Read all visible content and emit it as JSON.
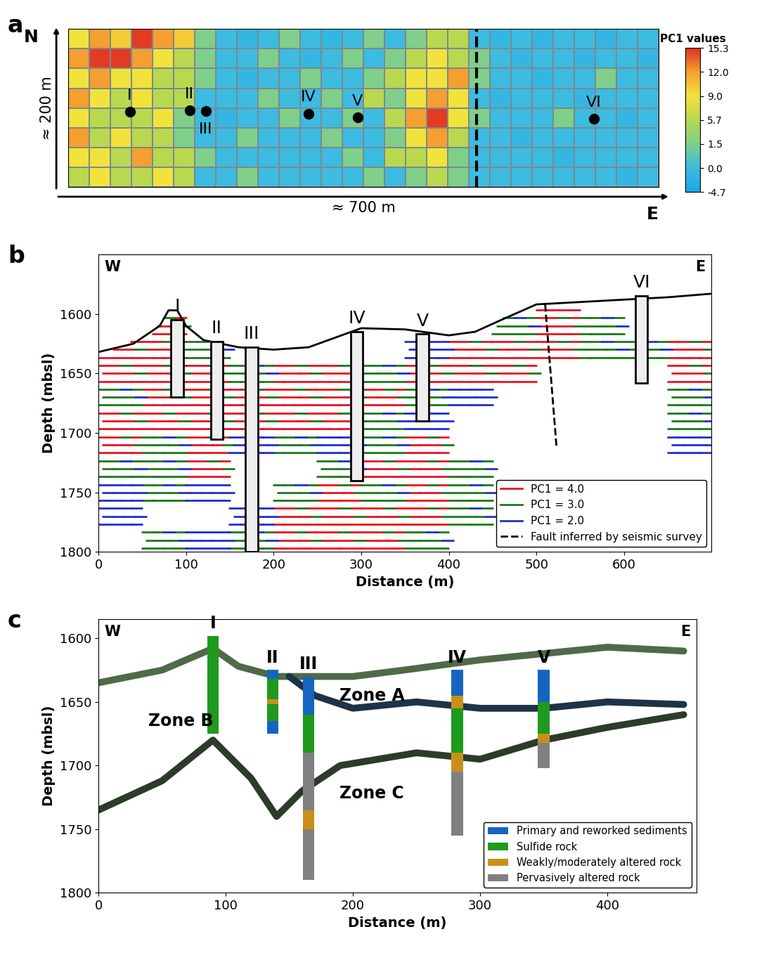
{
  "chart_data": [
    {
      "type": "heatmap",
      "panel": "a",
      "xlabel": "≈ 700 m",
      "ylabel": "≈ 200 m",
      "north": "N",
      "east": "E",
      "xlim": [
        0,
        700
      ],
      "ylim": [
        0,
        200
      ],
      "tick_labels": false,
      "cells": [
        [
          9,
          12,
          10,
          15,
          12,
          10,
          1.5,
          0,
          -1,
          0,
          1.5,
          0,
          -1,
          0,
          1.5,
          0,
          1.5,
          5.7,
          5.7,
          0,
          -1,
          0,
          -1,
          0,
          0,
          -1,
          0,
          0
        ],
        [
          12,
          15,
          15,
          12,
          9,
          5.7,
          1.5,
          0,
          0,
          1.5,
          0,
          -1,
          0,
          1.5,
          0,
          1.5,
          5.7,
          9,
          5.7,
          1.5,
          0,
          -1,
          0,
          0,
          -1,
          0,
          0,
          -1
        ],
        [
          9,
          12,
          9,
          9,
          5.7,
          5.7,
          1.5,
          0,
          -1,
          0,
          0,
          1.5,
          0,
          0,
          1.5,
          5.7,
          9,
          9,
          12,
          1.5,
          0,
          0,
          -1,
          0,
          0,
          1.5,
          0,
          0
        ],
        [
          12,
          9,
          5.7,
          9,
          5.7,
          5.7,
          0,
          0,
          0,
          1.5,
          0,
          0,
          1.5,
          0,
          5.7,
          1.5,
          9,
          12,
          9,
          0,
          -1,
          0,
          0,
          0,
          -1,
          0,
          0,
          0
        ],
        [
          9,
          5.7,
          5.7,
          5.7,
          9,
          1.5,
          0,
          -1,
          0,
          0,
          1.5,
          0,
          0,
          1.5,
          0,
          5.7,
          12,
          15,
          9,
          1.5,
          0,
          0,
          0,
          1.5,
          0,
          0,
          -1,
          0
        ],
        [
          12,
          5.7,
          9,
          5.7,
          5.7,
          1.5,
          0,
          0,
          1.5,
          0,
          0,
          0,
          1.5,
          0,
          0,
          1.5,
          9,
          12,
          5.7,
          0,
          0,
          -1,
          0,
          0,
          0,
          0,
          0,
          0
        ],
        [
          9,
          9,
          5.7,
          12,
          5.7,
          5.7,
          1.5,
          0,
          0,
          0,
          0,
          0,
          0,
          1.5,
          0,
          5.7,
          5.7,
          9,
          1.5,
          0,
          0,
          0,
          0,
          -1,
          0,
          0,
          0,
          0
        ],
        [
          5.7,
          9,
          5.7,
          5.7,
          9,
          5.7,
          0,
          0,
          1.5,
          0,
          0,
          0,
          0,
          0,
          1.5,
          0,
          1.5,
          5.7,
          1.5,
          0,
          0,
          0,
          0,
          0,
          0,
          0,
          -1,
          0
        ]
      ],
      "colorbar": {
        "label": "PC1 values",
        "range": [
          -4.7,
          15.3
        ],
        "ticks": [
          -4.7,
          0.0,
          1.5,
          5.7,
          9.0,
          12.0,
          15.3
        ]
      },
      "sites": [
        {
          "name": "I",
          "x": 73,
          "y": 95
        },
        {
          "name": "II",
          "x": 144,
          "y": 97
        },
        {
          "name": "III",
          "x": 163,
          "y": 96
        },
        {
          "name": "IV",
          "x": 285,
          "y": 93
        },
        {
          "name": "V",
          "x": 343,
          "y": 88
        },
        {
          "name": "VI",
          "x": 623,
          "y": 86
        }
      ],
      "fault_x": 484
    },
    {
      "type": "section",
      "panel": "b",
      "left": "W",
      "right": "E",
      "xlabel": "Distance (m)",
      "ylabel": "Depth (mbsl)",
      "xlim": [
        0,
        700
      ],
      "ylim": [
        1800,
        1550
      ],
      "xticks": [
        0,
        100,
        200,
        300,
        400,
        500,
        600
      ],
      "yticks": [
        1600,
        1650,
        1700,
        1750,
        1800
      ],
      "seafloor": {
        "x": [
          0,
          40,
          70,
          80,
          90,
          100,
          120,
          160,
          200,
          240,
          270,
          300,
          350,
          400,
          430,
          460,
          500,
          550,
          600,
          650,
          700
        ],
        "depth": [
          1632,
          1625,
          1610,
          1597,
          1597,
          1610,
          1622,
          1628,
          1630,
          1628,
          1620,
          1612,
          1613,
          1618,
          1615,
          1605,
          1592,
          1590,
          1588,
          1586,
          1583
        ]
      },
      "boreholes": [
        {
          "name": "I",
          "x": 90,
          "top": 1605,
          "bottom": 1670
        },
        {
          "name": "II",
          "x": 135,
          "top": 1623,
          "bottom": 1705
        },
        {
          "name": "III",
          "x": 175,
          "top": 1628,
          "bottom": 1800
        },
        {
          "name": "IV",
          "x": 295,
          "top": 1615,
          "bottom": 1740
        },
        {
          "name": "V",
          "x": 370,
          "top": 1617,
          "bottom": 1690
        },
        {
          "name": "VI",
          "x": 620,
          "top": 1585,
          "bottom": 1658
        }
      ],
      "levels": [
        {
          "name": "PC1 = 4.0",
          "value": 4.0,
          "color": "#e8141e"
        },
        {
          "name": "PC1 = 3.0",
          "value": 3.0,
          "color": "#1a7a1a"
        },
        {
          "name": "PC1 = 2.0",
          "value": 2.0,
          "color": "#1f2fd0"
        }
      ],
      "pc1_grid": {
        "x": [
          25,
          75,
          125,
          175,
          225,
          275,
          325,
          375,
          425,
          475,
          525,
          575,
          625,
          675
        ],
        "depth": [
          1590,
          1610,
          1630,
          1650,
          1670,
          1690,
          1710,
          1730,
          1750,
          1770,
          1790
        ],
        "values": [
          [
            0,
            0,
            0,
            0,
            0,
            0,
            0,
            0,
            0,
            0,
            4,
            0,
            0,
            0
          ],
          [
            0,
            4,
            0,
            0,
            0,
            0,
            0,
            0,
            0,
            3,
            4,
            3,
            0,
            0
          ],
          [
            4,
            4,
            3,
            0,
            0,
            0,
            0,
            2,
            4,
            4,
            4,
            3,
            3,
            4
          ],
          [
            4,
            4,
            4,
            3,
            4,
            4,
            3,
            4,
            4,
            4,
            0,
            0,
            0,
            4
          ],
          [
            3,
            4,
            4,
            4,
            4,
            4,
            4,
            3,
            2,
            0,
            0,
            0,
            0,
            3
          ],
          [
            4,
            4,
            4,
            4,
            4,
            4,
            3,
            2,
            0,
            0,
            0,
            0,
            0,
            3
          ],
          [
            4,
            3,
            4,
            2,
            3,
            2,
            3,
            4,
            0,
            0,
            0,
            0,
            0,
            2
          ],
          [
            3,
            3,
            4,
            0,
            0,
            3,
            4,
            4,
            3,
            0,
            0,
            0,
            0,
            0
          ],
          [
            2,
            3,
            2,
            0,
            3,
            4,
            3,
            4,
            3,
            0,
            0,
            0,
            0,
            0
          ],
          [
            2,
            0,
            0,
            2,
            4,
            4,
            4,
            4,
            3,
            0,
            0,
            0,
            0,
            0
          ],
          [
            0,
            3,
            2,
            3,
            4,
            4,
            4,
            3,
            0,
            0,
            0,
            0,
            0,
            0
          ]
        ]
      },
      "fault": {
        "name": "Fault inferred by seismic survey",
        "x": [
          510,
          523
        ],
        "depth": [
          1592,
          1712
        ]
      },
      "legend": "lower right"
    },
    {
      "type": "model",
      "panel": "c",
      "left": "W",
      "right": "E",
      "xlabel": "Distance (m)",
      "ylabel": "Depth (mbsl)",
      "xlim": [
        0,
        470
      ],
      "ylim": [
        1800,
        1585
      ],
      "xticks": [
        0,
        100,
        200,
        300,
        400
      ],
      "yticks": [
        1600,
        1650,
        1700,
        1750,
        1800
      ],
      "zones": [
        "Zone A",
        "Zone B",
        "Zone C"
      ],
      "surfaces": [
        {
          "x": [
            0,
            50,
            90,
            110,
            140,
            200,
            240,
            300,
            350,
            400,
            460
          ],
          "depth": [
            1635,
            1625,
            1608,
            1622,
            1630,
            1630,
            1625,
            1617,
            1612,
            1607,
            1610
          ],
          "color": "#4f6a48"
        },
        {
          "x": [
            150,
            170,
            200,
            250,
            300,
            350,
            400,
            460
          ],
          "depth": [
            1630,
            1645,
            1655,
            1650,
            1655,
            1655,
            1650,
            1652
          ],
          "color": "#1e3345"
        },
        {
          "x": [
            0,
            50,
            90,
            120,
            140,
            160,
            190,
            250,
            300,
            350,
            400,
            460
          ],
          "depth": [
            1735,
            1712,
            1680,
            1710,
            1740,
            1720,
            1700,
            1690,
            1695,
            1680,
            1670,
            1660
          ],
          "color": "#2d3b2a"
        }
      ],
      "units": [
        {
          "name": "Primary and reworked sediments",
          "color": "#1565c0"
        },
        {
          "name": "Sulfide rock",
          "color": "#1e9a1e"
        },
        {
          "name": "Weakly/moderately altered rock",
          "color": "#c8901a"
        },
        {
          "name": "Pervasively altered rock",
          "color": "#808080"
        }
      ],
      "boreholes": [
        {
          "name": "I",
          "x": 90,
          "segments": [
            {
              "unit": "Sulfide rock",
              "top": 1598,
              "bottom": 1675
            }
          ]
        },
        {
          "name": "II",
          "x": 137,
          "segments": [
            {
              "unit": "Primary and reworked sediments",
              "top": 1625,
              "bottom": 1632
            },
            {
              "unit": "Sulfide rock",
              "top": 1632,
              "bottom": 1648
            },
            {
              "unit": "Weakly/moderately altered rock",
              "top": 1648,
              "bottom": 1652
            },
            {
              "unit": "Sulfide rock",
              "top": 1652,
              "bottom": 1665
            },
            {
              "unit": "Primary and reworked sediments",
              "top": 1665,
              "bottom": 1675
            }
          ]
        },
        {
          "name": "III",
          "x": 165,
          "segments": [
            {
              "unit": "Primary and reworked sediments",
              "top": 1630,
              "bottom": 1660
            },
            {
              "unit": "Sulfide rock",
              "top": 1660,
              "bottom": 1690
            },
            {
              "unit": "Pervasively altered rock",
              "top": 1690,
              "bottom": 1735
            },
            {
              "unit": "Weakly/moderately altered rock",
              "top": 1735,
              "bottom": 1750
            },
            {
              "unit": "Pervasively altered rock",
              "top": 1750,
              "bottom": 1790
            }
          ]
        },
        {
          "name": "IV",
          "x": 282,
          "segments": [
            {
              "unit": "Primary and reworked sediments",
              "top": 1625,
              "bottom": 1645
            },
            {
              "unit": "Weakly/moderately altered rock",
              "top": 1645,
              "bottom": 1655
            },
            {
              "unit": "Sulfide rock",
              "top": 1655,
              "bottom": 1690
            },
            {
              "unit": "Weakly/moderately altered rock",
              "top": 1690,
              "bottom": 1705
            },
            {
              "unit": "Pervasively altered rock",
              "top": 1705,
              "bottom": 1755
            }
          ]
        },
        {
          "name": "V",
          "x": 350,
          "segments": [
            {
              "unit": "Primary and reworked sediments",
              "top": 1625,
              "bottom": 1650
            },
            {
              "unit": "Sulfide rock",
              "top": 1650,
              "bottom": 1675
            },
            {
              "unit": "Weakly/moderately altered rock",
              "top": 1675,
              "bottom": 1682
            },
            {
              "unit": "Pervasively altered rock",
              "top": 1682,
              "bottom": 1702
            }
          ]
        }
      ],
      "legend": "lower right"
    }
  ]
}
